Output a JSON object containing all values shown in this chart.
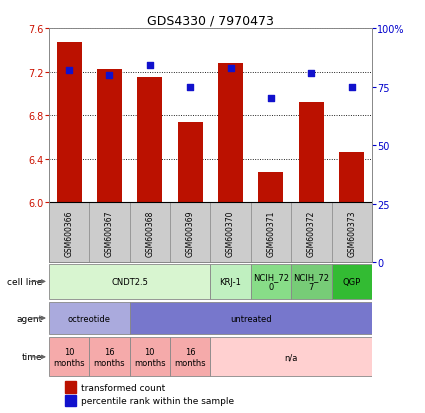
{
  "title": "GDS4330 / 7970473",
  "samples": [
    "GSM600366",
    "GSM600367",
    "GSM600368",
    "GSM600369",
    "GSM600370",
    "GSM600371",
    "GSM600372",
    "GSM600373"
  ],
  "bar_values": [
    7.47,
    7.22,
    7.15,
    6.74,
    7.28,
    6.28,
    6.92,
    6.46
  ],
  "percentile_values": [
    82,
    80,
    84,
    75,
    83,
    70,
    81,
    75
  ],
  "ylim": [
    6.0,
    7.6
  ],
  "yticks": [
    6.0,
    6.4,
    6.8,
    7.2,
    7.6
  ],
  "right_yticks": [
    0,
    25,
    50,
    75,
    100
  ],
  "right_ytick_labels": [
    "0",
    "25",
    "50",
    "75",
    "100%"
  ],
  "bar_color": "#bb1100",
  "dot_color": "#1111cc",
  "cell_groups": [
    {
      "start": 0,
      "end": 4,
      "label": "CNDT2.5",
      "color": "#d8f5d0"
    },
    {
      "start": 4,
      "end": 5,
      "label": "KRJ-1",
      "color": "#c0f0c0"
    },
    {
      "start": 5,
      "end": 6,
      "label": "NCIH_72\n0",
      "color": "#88dd88"
    },
    {
      "start": 6,
      "end": 7,
      "label": "NCIH_72\n7",
      "color": "#77cc77"
    },
    {
      "start": 7,
      "end": 8,
      "label": "QGP",
      "color": "#33bb33"
    }
  ],
  "agent_groups": [
    {
      "start": 0,
      "end": 2,
      "label": "octreotide",
      "color": "#aaaadd"
    },
    {
      "start": 2,
      "end": 8,
      "label": "untreated",
      "color": "#7777cc"
    }
  ],
  "time_groups": [
    {
      "start": 0,
      "end": 1,
      "label": "10\nmonths",
      "color": "#f5aaaa"
    },
    {
      "start": 1,
      "end": 2,
      "label": "16\nmonths",
      "color": "#f5aaaa"
    },
    {
      "start": 2,
      "end": 3,
      "label": "10\nmonths",
      "color": "#f5aaaa"
    },
    {
      "start": 3,
      "end": 4,
      "label": "16\nmonths",
      "color": "#f5aaaa"
    },
    {
      "start": 4,
      "end": 8,
      "label": "n/a",
      "color": "#ffd0d0"
    }
  ],
  "legend_bar_label": "transformed count",
  "legend_dot_label": "percentile rank within the sample",
  "sample_box_color": "#cccccc",
  "sample_box_edge": "#999999",
  "main_bg": "#ffffff",
  "grid_color": "#333333"
}
